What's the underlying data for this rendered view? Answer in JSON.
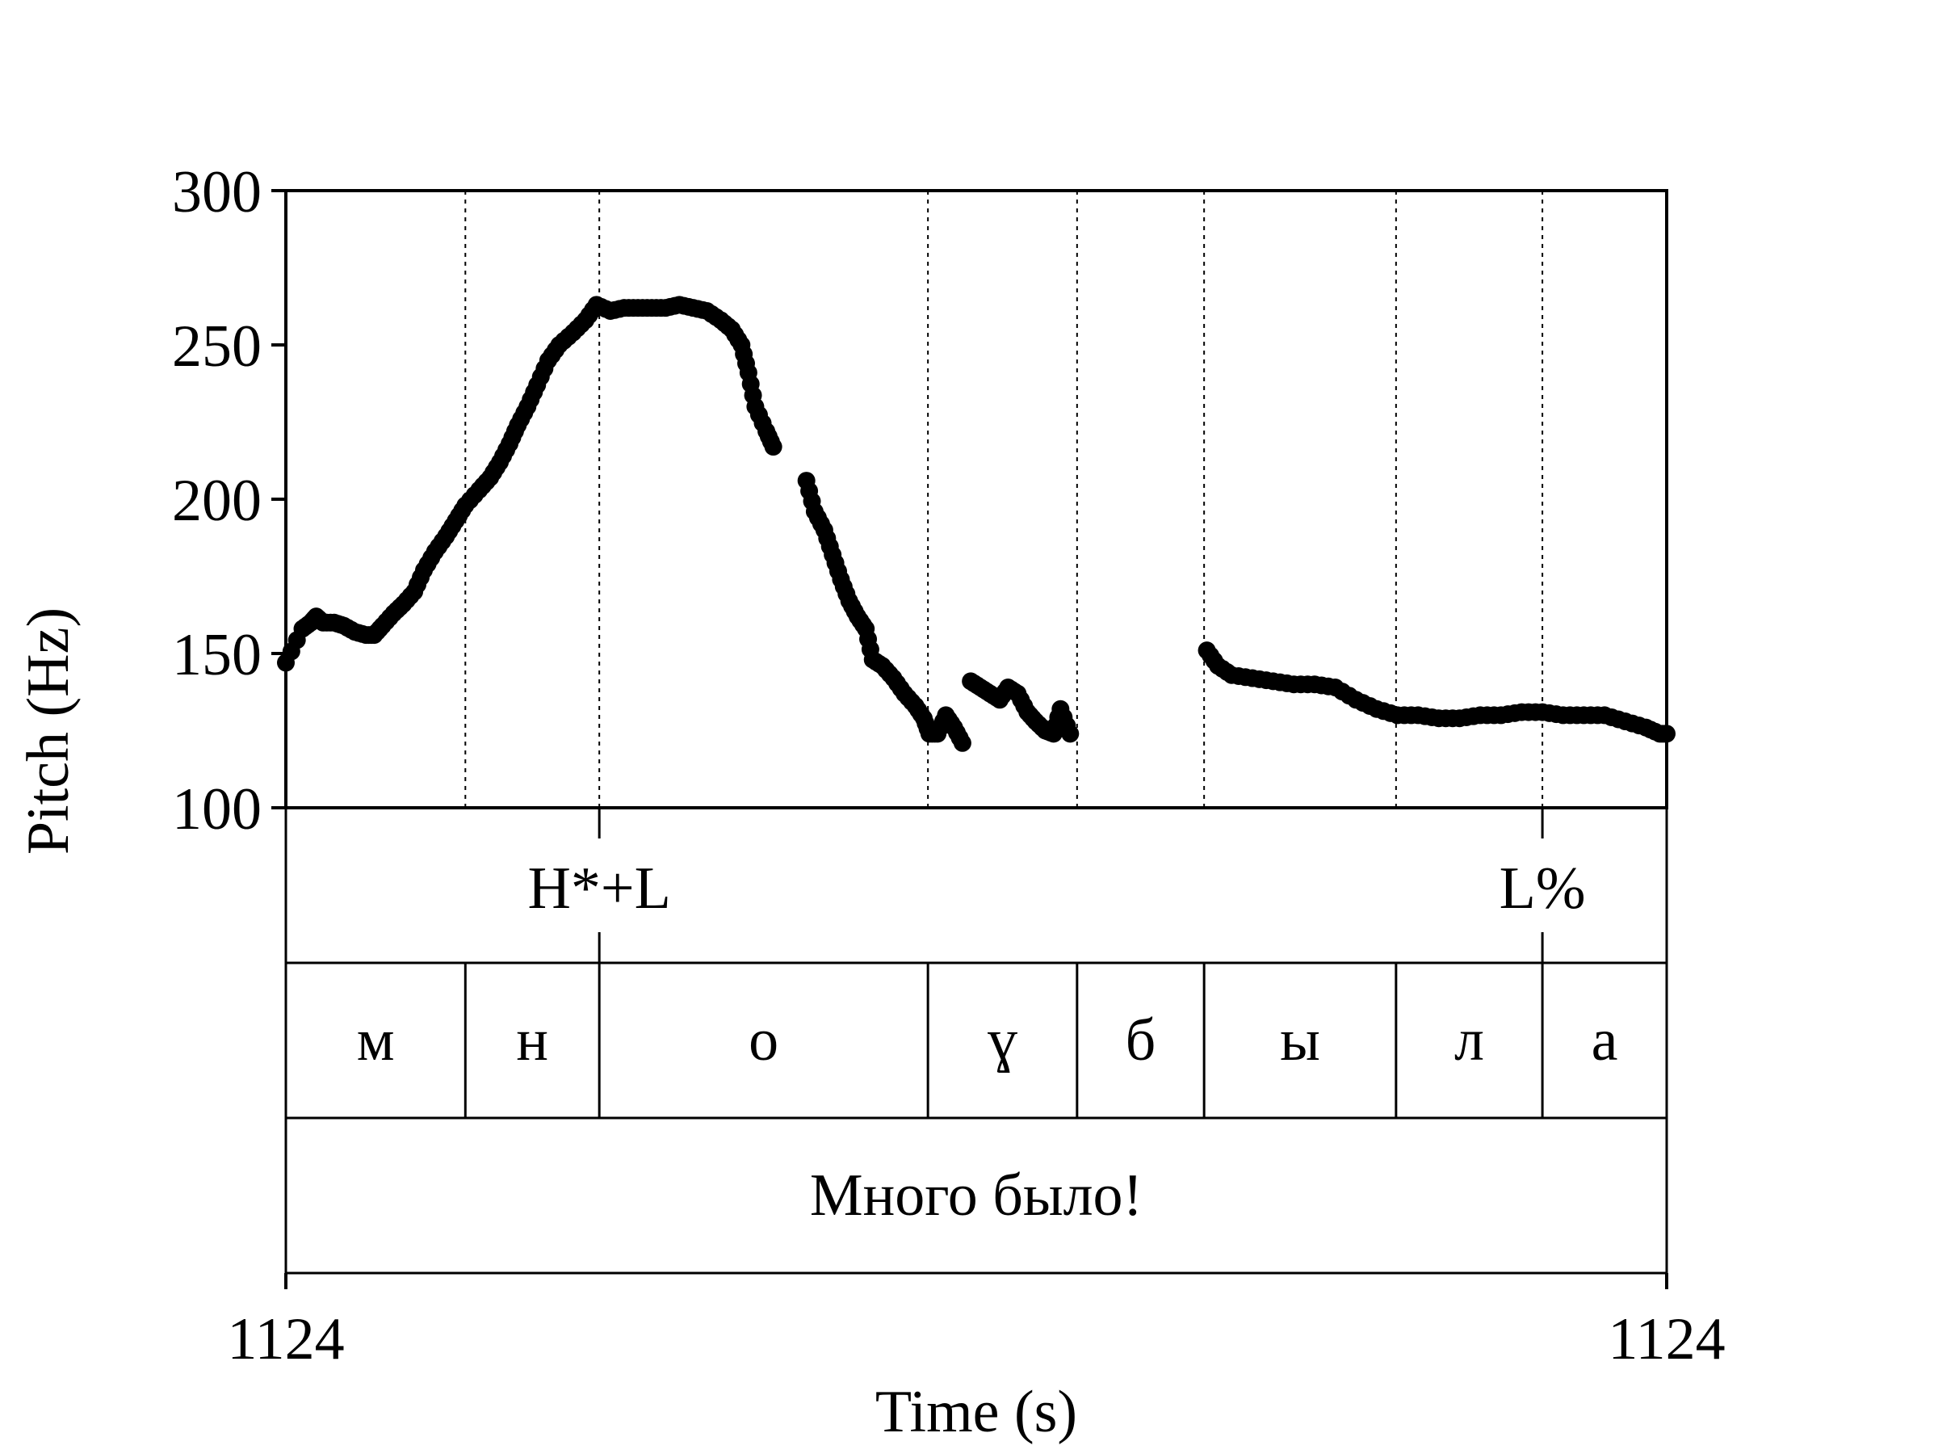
{
  "chart_data": {
    "type": "scatter",
    "ylabel": "Pitch (Hz)",
    "xlabel": "Time (s)",
    "ylim": [
      100,
      300
    ],
    "y_ticks": [
      "300",
      "250",
      "200",
      "150",
      "100"
    ],
    "x_tick_left": "1124",
    "x_tick_right": "1124",
    "grid": false,
    "point_color": "#000000",
    "segment_boundaries": [
      0,
      0.13,
      0.227,
      0.465,
      0.573,
      0.665,
      0.804,
      0.91,
      1.0
    ],
    "tone_tier": [
      {
        "label": "H*+L",
        "time": 0.227
      },
      {
        "label": "L%",
        "time": 0.91
      }
    ],
    "segments": [
      "м",
      "н",
      "о",
      "ɣ",
      "б",
      "ы",
      "л",
      "а"
    ],
    "utterance": "Много было!",
    "pitch_contours": [
      [
        [
          0.0,
          147
        ],
        [
          0.012,
          158
        ],
        [
          0.018,
          160
        ],
        [
          0.022,
          162
        ],
        [
          0.027,
          160
        ],
        [
          0.035,
          160
        ],
        [
          0.042,
          159
        ],
        [
          0.05,
          157
        ],
        [
          0.058,
          156
        ],
        [
          0.064,
          156
        ],
        [
          0.07,
          159
        ],
        [
          0.078,
          163
        ],
        [
          0.085,
          166
        ],
        [
          0.093,
          170
        ],
        [
          0.1,
          177
        ],
        [
          0.108,
          183
        ],
        [
          0.116,
          188
        ],
        [
          0.123,
          193
        ],
        [
          0.13,
          198
        ],
        [
          0.14,
          203
        ],
        [
          0.148,
          207
        ],
        [
          0.155,
          212
        ],
        [
          0.162,
          218
        ],
        [
          0.168,
          224
        ],
        [
          0.175,
          230
        ],
        [
          0.182,
          237
        ],
        [
          0.19,
          245
        ],
        [
          0.198,
          250
        ],
        [
          0.208,
          254
        ],
        [
          0.217,
          258
        ],
        [
          0.225,
          263
        ],
        [
          0.235,
          261
        ],
        [
          0.245,
          262
        ],
        [
          0.255,
          262
        ],
        [
          0.265,
          262
        ],
        [
          0.275,
          262
        ],
        [
          0.285,
          263
        ],
        [
          0.295,
          262
        ],
        [
          0.305,
          261
        ],
        [
          0.315,
          258
        ],
        [
          0.323,
          255
        ],
        [
          0.33,
          250
        ],
        [
          0.335,
          241
        ],
        [
          0.34,
          230
        ],
        [
          0.348,
          222
        ],
        [
          0.353,
          217
        ]
      ],
      [
        [
          0.377,
          206
        ],
        [
          0.383,
          196
        ],
        [
          0.39,
          190
        ],
        [
          0.396,
          182
        ],
        [
          0.402,
          174
        ],
        [
          0.408,
          167
        ],
        [
          0.414,
          162
        ],
        [
          0.42,
          158
        ],
        [
          0.425,
          148
        ],
        [
          0.432,
          146
        ],
        [
          0.44,
          142
        ],
        [
          0.448,
          137
        ],
        [
          0.456,
          133
        ],
        [
          0.462,
          129
        ],
        [
          0.466,
          124
        ],
        [
          0.472,
          124
        ],
        [
          0.478,
          130
        ],
        [
          0.484,
          126
        ],
        [
          0.49,
          121
        ]
      ]
    ],
    "pitch_contours_b": [
      [
        [
          0.496,
          141
        ],
        [
          0.503,
          139
        ],
        [
          0.51,
          137
        ],
        [
          0.517,
          135
        ],
        [
          0.523,
          139
        ],
        [
          0.53,
          137
        ],
        [
          0.537,
          131
        ],
        [
          0.543,
          128
        ],
        [
          0.55,
          125
        ],
        [
          0.556,
          124
        ],
        [
          0.561,
          132
        ],
        [
          0.568,
          124
        ]
      ]
    ],
    "pitch_contours_c": [
      [
        [
          0.667,
          151
        ],
        [
          0.675,
          146
        ],
        [
          0.685,
          143
        ],
        [
          0.7,
          142
        ],
        [
          0.715,
          141
        ],
        [
          0.73,
          140
        ],
        [
          0.745,
          140
        ],
        [
          0.76,
          139
        ],
        [
          0.775,
          135
        ],
        [
          0.79,
          132
        ],
        [
          0.805,
          130
        ],
        [
          0.82,
          130
        ],
        [
          0.835,
          129
        ],
        [
          0.85,
          129
        ],
        [
          0.865,
          130
        ],
        [
          0.88,
          130
        ],
        [
          0.895,
          131
        ],
        [
          0.91,
          131
        ],
        [
          0.925,
          130
        ],
        [
          0.94,
          130
        ],
        [
          0.955,
          130
        ],
        [
          0.97,
          128
        ],
        [
          0.985,
          126
        ],
        [
          0.995,
          124
        ],
        [
          1.0,
          124
        ]
      ]
    ]
  }
}
